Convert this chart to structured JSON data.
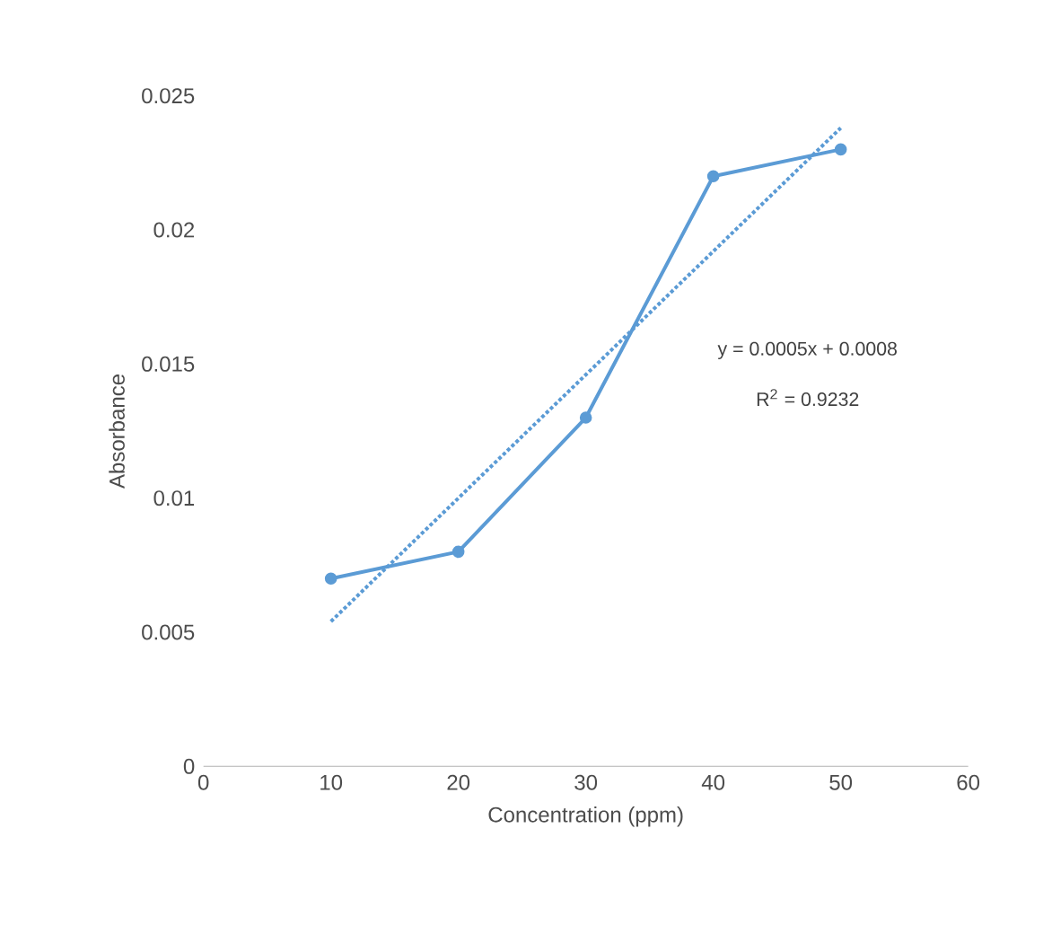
{
  "chart_data": {
    "type": "line",
    "xlabel": "Concentration (ppm)",
    "ylabel": "Absorbance",
    "x": [
      10,
      20,
      30,
      40,
      50
    ],
    "series": [
      {
        "color": "#5b9bd5",
        "values": [
          0.007,
          0.008,
          0.013,
          0.022,
          0.023
        ],
        "marker": "circle",
        "line_style": "solid"
      },
      {
        "color": "#5b9bd5",
        "x": [
          10,
          50
        ],
        "values": [
          0.0054,
          0.0238
        ],
        "marker": "none",
        "line_style": "dotted"
      }
    ],
    "xlim": [
      0,
      60
    ],
    "xticks": [
      0,
      10,
      20,
      30,
      40,
      50,
      60
    ],
    "ylim": [
      0,
      0.025
    ],
    "yticks": [
      0,
      0.005,
      0.01,
      0.015,
      0.02,
      0.025
    ],
    "grid": false,
    "annotations": [
      "y = 0.0005x + 0.0008",
      "R$^{2}$ = 0.9232"
    ]
  }
}
